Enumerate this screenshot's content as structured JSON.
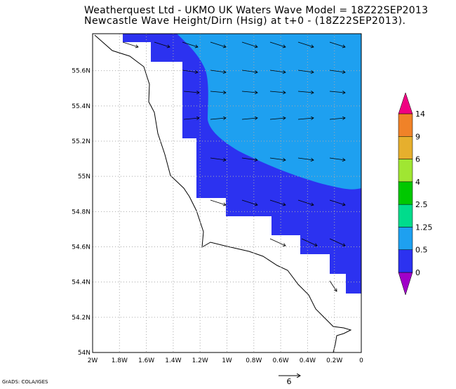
{
  "header": {
    "title_lines": [
      "Weatherquest Ltd - UKMO UK Waters Wave Model = 18Z22SEP2013",
      "Newcastle Wave Height/Dirn (Hsig) at t+0 - (18Z22SEP2013)."
    ]
  },
  "map": {
    "xlim": [
      -2,
      0
    ],
    "ylim": [
      54,
      55.81
    ],
    "grid": true,
    "xticks": [
      {
        "value": -2,
        "label": "2W"
      },
      {
        "value": -1.8,
        "label": "1.8W"
      },
      {
        "value": -1.6,
        "label": "1.6W"
      },
      {
        "value": -1.4,
        "label": "1.4W"
      },
      {
        "value": -1.2,
        "label": "1.2W"
      },
      {
        "value": -1,
        "label": "1W"
      },
      {
        "value": -0.8,
        "label": "0.8W"
      },
      {
        "value": -0.6,
        "label": "0.6W"
      },
      {
        "value": -0.4,
        "label": "0.4W"
      },
      {
        "value": -0.2,
        "label": "0.2W"
      },
      0
    ],
    "yticks": [
      {
        "value": 54,
        "label": "54N"
      },
      {
        "value": 54.2,
        "label": "54.2N"
      },
      {
        "value": 54.4,
        "label": "54.4N"
      },
      {
        "value": 54.6,
        "label": "54.6N"
      },
      {
        "value": 54.8,
        "label": "54.8N"
      },
      {
        "value": 55,
        "label": "55N"
      },
      {
        "value": 55.2,
        "label": "55.2N"
      },
      {
        "value": 55.4,
        "label": "55.4N"
      },
      {
        "value": 55.6,
        "label": "55.6N"
      }
    ]
  },
  "colorbar": {
    "levels": [
      0,
      0.5,
      1.25,
      2.5,
      4,
      6,
      9,
      14
    ],
    "colors": [
      "#a000c8",
      "#2c32f0",
      "#1ea0f0",
      "#00dc8c",
      "#00c800",
      "#a0e632",
      "#e6af2d",
      "#f08228",
      "#f00082"
    ]
  },
  "vector_key": {
    "label": "6"
  },
  "footer": {
    "credit": "GrADS: COLA/IGES"
  }
}
